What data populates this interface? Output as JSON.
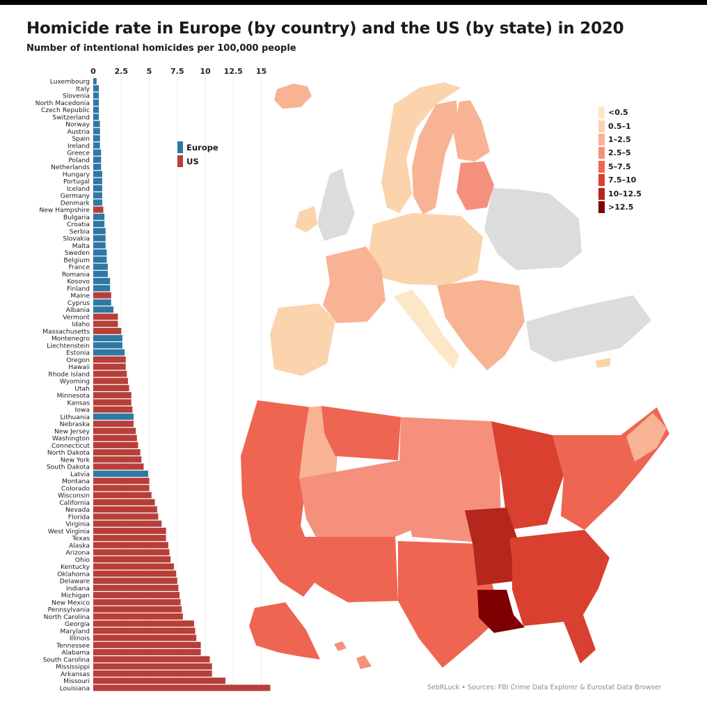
{
  "header": {
    "title": "Homicide rate in Europe (by country) and the US (by state) in 2020",
    "subtitle": "Number of intentional homicides per 100,000 people"
  },
  "source_note": "SebRLuck • Sources: FBI Crime Data Explorer & Eurostat Data Browser",
  "colors": {
    "europe": "#2f78a4",
    "us": "#b73f38",
    "no_data": "#dcdcdc"
  },
  "map_legend": {
    "items": [
      {
        "label": "<0.5",
        "color": "#fce7c6"
      },
      {
        "label": "0.5–1",
        "color": "#fbd3ad"
      },
      {
        "label": "1–2.5",
        "color": "#f8b394"
      },
      {
        "label": "2.5–5",
        "color": "#f5907c"
      },
      {
        "label": "5–7.5",
        "color": "#ee6552"
      },
      {
        "label": "7.5–10",
        "color": "#d9402f"
      },
      {
        "label": "10–12.5",
        "color": "#b5261d"
      },
      {
        "label": ">12.5",
        "color": "#7f0000"
      }
    ]
  },
  "chart_data": {
    "type": "bar",
    "orientation": "horizontal",
    "xlim": [
      0,
      16
    ],
    "xticks": [
      0,
      2.5,
      5,
      7.5,
      10,
      12.5,
      15
    ],
    "xtick_labels": [
      "0",
      "2.5",
      "5",
      "7.5",
      "10",
      "12.5",
      "15"
    ],
    "grid": true,
    "legend": {
      "placement": "top-center",
      "entries": [
        "Europe",
        "US"
      ]
    },
    "series": [
      {
        "name": "Europe"
      },
      {
        "name": "US"
      }
    ],
    "categories": [
      "Luxembourg",
      "Italy",
      "Slovenia",
      "North Macedonia",
      "Czech Republic",
      "Switzerland",
      "Norway",
      "Austria",
      "Spain",
      "Ireland",
      "Greece",
      "Poland",
      "Netherlands",
      "Hungary",
      "Portugal",
      "Iceland",
      "Germany",
      "Denmark",
      "New Hampshire",
      "Bulgaria",
      "Croatia",
      "Serbia",
      "Slovakia",
      "Malta",
      "Sweden",
      "Belgium",
      "France",
      "Romania",
      "Kosovo",
      "Finland",
      "Maine",
      "Cyprus",
      "Albania",
      "Vermont",
      "Idaho",
      "Massachusetts",
      "Montenegro",
      "Liechtenstein",
      "Estonia",
      "Oregon",
      "Hawaii",
      "Rhode Island",
      "Wyoming",
      "Utah",
      "Minnesota",
      "Kansas",
      "Iowa",
      "Lithuania",
      "Nebraska",
      "New Jersey",
      "Washington",
      "Connecticut",
      "North Dakota",
      "New York",
      "South Dakota",
      "Latvia",
      "Montana",
      "Colorado",
      "Wisconsin",
      "California",
      "Nevada",
      "Florida",
      "Virginia",
      "West Virginia",
      "Texas",
      "Alaska",
      "Arizona",
      "Ohio",
      "Kentucky",
      "Oklahoma",
      "Delaware",
      "Indiana",
      "Michigan",
      "New Mexico",
      "Pennsylvania",
      "North Carolina",
      "Georgia",
      "Maryland",
      "Illinois",
      "Tennessee",
      "Alabama",
      "South Carolina",
      "Mississippi",
      "Arkansas",
      "Missouri",
      "Louisiana"
    ],
    "values": [
      0.3,
      0.5,
      0.5,
      0.5,
      0.5,
      0.5,
      0.6,
      0.6,
      0.6,
      0.6,
      0.7,
      0.7,
      0.7,
      0.8,
      0.8,
      0.8,
      0.8,
      0.8,
      0.9,
      1.0,
      1.0,
      1.1,
      1.1,
      1.1,
      1.2,
      1.2,
      1.3,
      1.3,
      1.5,
      1.5,
      1.6,
      1.6,
      1.8,
      2.2,
      2.2,
      2.5,
      2.6,
      2.6,
      2.8,
      2.9,
      2.9,
      3.0,
      3.1,
      3.2,
      3.4,
      3.4,
      3.5,
      3.6,
      3.6,
      3.8,
      3.9,
      4.0,
      4.2,
      4.3,
      4.5,
      4.9,
      5.0,
      5.0,
      5.2,
      5.5,
      5.7,
      5.8,
      6.1,
      6.5,
      6.5,
      6.7,
      6.8,
      6.9,
      7.2,
      7.4,
      7.5,
      7.6,
      7.7,
      7.8,
      7.9,
      8.0,
      9.0,
      9.1,
      9.2,
      9.6,
      9.6,
      10.4,
      10.6,
      10.6,
      11.8,
      15.8
    ],
    "groups": [
      "Europe",
      "Europe",
      "Europe",
      "Europe",
      "Europe",
      "Europe",
      "Europe",
      "Europe",
      "Europe",
      "Europe",
      "Europe",
      "Europe",
      "Europe",
      "Europe",
      "Europe",
      "Europe",
      "Europe",
      "Europe",
      "US",
      "Europe",
      "Europe",
      "Europe",
      "Europe",
      "Europe",
      "Europe",
      "Europe",
      "Europe",
      "Europe",
      "Europe",
      "Europe",
      "US",
      "Europe",
      "Europe",
      "US",
      "US",
      "US",
      "Europe",
      "Europe",
      "Europe",
      "US",
      "US",
      "US",
      "US",
      "US",
      "US",
      "US",
      "US",
      "Europe",
      "US",
      "US",
      "US",
      "US",
      "US",
      "US",
      "US",
      "Europe",
      "US",
      "US",
      "US",
      "US",
      "US",
      "US",
      "US",
      "US",
      "US",
      "US",
      "US",
      "US",
      "US",
      "US",
      "US",
      "US",
      "US",
      "US",
      "US",
      "US",
      "US",
      "US",
      "US",
      "US",
      "US",
      "US",
      "US",
      "US",
      "US",
      "US"
    ]
  },
  "maps": {
    "europe": {
      "no_data_color": "#dcdcdc"
    },
    "us": {}
  }
}
